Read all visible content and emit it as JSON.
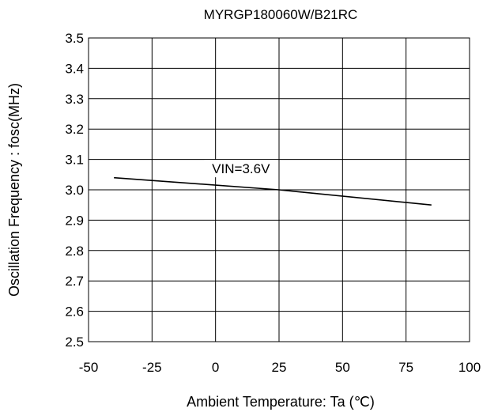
{
  "chart_data": {
    "type": "line",
    "title": "MYRGP180060W/B21RC",
    "xlabel": "Ambient Temperature: Ta (℃)",
    "ylabel": "Oscillation Frequency : fosc(MHz)",
    "xlim": [
      -50,
      100
    ],
    "ylim": [
      2.5,
      3.5
    ],
    "x_ticks": [
      "-50",
      "-25",
      "0",
      "25",
      "50",
      "75",
      "100"
    ],
    "y_ticks": [
      "2.5",
      "2.6",
      "2.7",
      "2.8",
      "2.9",
      "3.0",
      "3.1",
      "3.2",
      "3.3",
      "3.4",
      "3.5"
    ],
    "grid": true,
    "series": [
      {
        "name": "VIN=3.6V",
        "x": [
          -40,
          25,
          85
        ],
        "y": [
          3.04,
          3.0,
          2.95
        ]
      }
    ],
    "annotation": "VIN=3.6V",
    "colors": {
      "line": "#000000",
      "grid": "#000000",
      "background": "#ffffff"
    }
  }
}
